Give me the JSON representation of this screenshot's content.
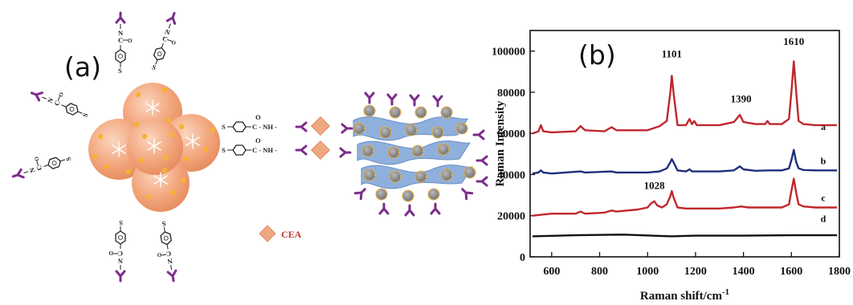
{
  "panel_a": {
    "label": "(a)",
    "linker_label": "C - NH -",
    "linker_o": "O",
    "linker_s": "S",
    "legend_label": "CEA",
    "colors": {
      "nanoparticle": "#f2a57c",
      "dot": "#f5b335",
      "antibody": "#7b2d8b",
      "antigen": "#f0a880",
      "graphene": "#8fb0dc",
      "bead": "#8a8a8a"
    }
  },
  "panel_b": {
    "label": "(b)"
  },
  "chart_data": {
    "type": "line",
    "xlabel": "Raman shift/cm",
    "xlabel_sup": "-1",
    "ylabel": "Raman Intensity",
    "xlim": [
      510,
      1800
    ],
    "ylim": [
      0,
      110000
    ],
    "xticks": [
      600,
      800,
      1000,
      1200,
      1400,
      1600,
      1800
    ],
    "yticks": [
      0,
      20000,
      40000,
      60000,
      80000,
      100000
    ],
    "peak_labels": [
      {
        "text": "1101",
        "x": 1101,
        "y": 97000
      },
      {
        "text": "1390",
        "x": 1390,
        "y": 75000
      },
      {
        "text": "1610",
        "x": 1610,
        "y": 103000
      },
      {
        "text": "1028",
        "x": 1028,
        "y": 33000
      }
    ],
    "series": [
      {
        "name": "a",
        "color": "#c0272d",
        "label_y": 60000,
        "x": [
          520,
          545,
          555,
          565,
          600,
          700,
          720,
          740,
          820,
          850,
          870,
          1000,
          1050,
          1080,
          1095,
          1101,
          1108,
          1125,
          1160,
          1175,
          1185,
          1195,
          1205,
          1300,
          1360,
          1385,
          1400,
          1450,
          1490,
          1500,
          1510,
          1560,
          1590,
          1600,
          1610,
          1620,
          1630,
          1650,
          1700,
          1790
        ],
        "y": [
          60000,
          61000,
          64000,
          61000,
          60500,
          61000,
          63500,
          61500,
          61000,
          63000,
          61500,
          61500,
          63500,
          66000,
          80000,
          88000,
          80000,
          64000,
          64000,
          67000,
          64500,
          66000,
          64000,
          64000,
          65500,
          69000,
          65500,
          64500,
          64500,
          66000,
          64500,
          64500,
          67000,
          80000,
          95000,
          80000,
          66000,
          64500,
          64000,
          64000
        ]
      },
      {
        "name": "b",
        "color": "#1f2f7a",
        "label_y": 43500,
        "x": [
          520,
          545,
          555,
          565,
          600,
          720,
          740,
          850,
          870,
          1000,
          1050,
          1080,
          1095,
          1101,
          1108,
          1125,
          1160,
          1175,
          1185,
          1200,
          1300,
          1360,
          1385,
          1400,
          1450,
          1500,
          1560,
          1590,
          1600,
          1610,
          1620,
          1630,
          1650,
          1700,
          1790
        ],
        "y": [
          40500,
          41000,
          42000,
          41000,
          40500,
          41500,
          41000,
          41500,
          41000,
          41000,
          41500,
          43000,
          46000,
          47500,
          46000,
          42000,
          41500,
          42500,
          41500,
          41500,
          41500,
          42000,
          44000,
          42500,
          41800,
          42000,
          42000,
          43000,
          47000,
          52000,
          46000,
          43000,
          42200,
          42000,
          42000
        ]
      },
      {
        "name": "c",
        "color": "#c0272d",
        "label_y": 25500,
        "x": [
          520,
          560,
          600,
          700,
          720,
          740,
          820,
          850,
          870,
          960,
          1000,
          1015,
          1028,
          1040,
          1060,
          1080,
          1095,
          1101,
          1108,
          1125,
          1160,
          1300,
          1360,
          1390,
          1420,
          1500,
          1560,
          1590,
          1600,
          1610,
          1620,
          1630,
          1650,
          1700,
          1790
        ],
        "y": [
          20000,
          20500,
          21000,
          21000,
          22000,
          21000,
          21500,
          22500,
          22000,
          23000,
          24000,
          26000,
          27000,
          25000,
          24000,
          25500,
          29500,
          32000,
          29000,
          24000,
          23500,
          23500,
          24000,
          24500,
          24000,
          24000,
          24000,
          25500,
          32000,
          38000,
          31000,
          25500,
          24500,
          24000,
          24000
        ]
      },
      {
        "name": "d",
        "color": "#111111",
        "label_y": 15500,
        "x": [
          520,
          700,
          900,
          1050,
          1100,
          1200,
          1400,
          1600,
          1790
        ],
        "y": [
          10000,
          10500,
          10800,
          10200,
          10000,
          10300,
          10300,
          10500,
          10500
        ]
      }
    ]
  }
}
